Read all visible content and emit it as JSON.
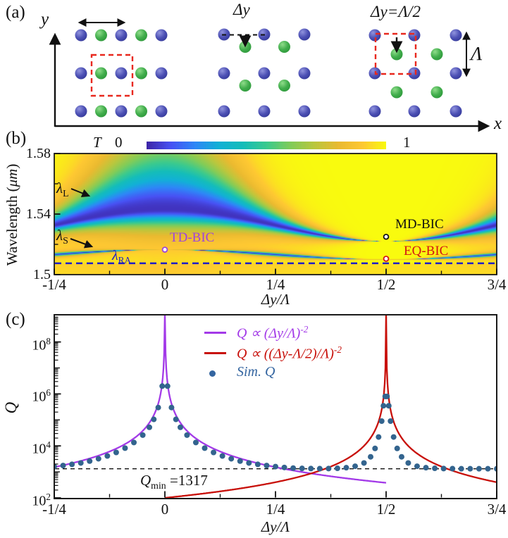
{
  "figure": {
    "panel_a": {
      "label": "(a)",
      "x_axis_label": "x",
      "y_axis_label": "y",
      "middle_shift_label": "Δy",
      "right_shift_label": "Δy=Λ/2",
      "period_label": "Λ",
      "colors": {
        "blue_dot": "#4347ae",
        "green_dot": "#3aaa46",
        "red_dashed": "#e8281e"
      },
      "lattices": {
        "left": {
          "cols": [
            115,
            143.5,
            172,
            200.5,
            229
          ],
          "rows": [
            50,
            104,
            158
          ],
          "pattern": [
            "blue",
            "green",
            "blue",
            "green",
            "blue"
          ],
          "unit_cell": [
            130,
            78,
            58,
            58
          ],
          "period_arrow": [
            113,
            32,
            176,
            32
          ]
        },
        "middle": {
          "blue_cols": [
            318,
            375,
            432
          ],
          "green_cols": [
            348,
            403.5
          ],
          "rows": [
            49,
            104,
            158
          ],
          "green_offset": 17.5,
          "dash_line": [
            315,
            49.5,
            378,
            49.5
          ],
          "shift_arrow": [
            348,
            50,
            348,
            64
          ]
        },
        "right": {
          "blue_cols": [
            532,
            588,
            647
          ],
          "green_cols": [
            563,
            620
          ],
          "rows": [
            50,
            104,
            158
          ],
          "green_offset": 27,
          "unit_cell": [
            533,
            48,
            57,
            57
          ],
          "shift_arrow": [
            563,
            53,
            563,
            72
          ],
          "lambda_arrow": [
            662,
            47,
            662,
            107
          ]
        }
      },
      "dot_radius": 8.5
    },
    "panel_b": {
      "label": "(b)",
      "y_axis_label": {
        "pre": "Wavelength (",
        "unit": "μm",
        "post": ")"
      },
      "x_axis_label": "Δy/Λ",
      "colorbar": {
        "label": "T",
        "min_label": "0",
        "max_label": "1"
      },
      "annotations": {
        "lambda_L": {
          "base": "λ",
          "sub": "L",
          "color": "#111111"
        },
        "lambda_S": {
          "base": "λ",
          "sub": "S",
          "color": "#111111"
        },
        "lambda_RA": {
          "base": "λ",
          "sub": "RA",
          "color": "#1c1cc8"
        },
        "td_bic": {
          "label": "TD-BIC",
          "color": "#9d45dd",
          "marker_x": 0,
          "marker_lambda": 1.5165
        },
        "md_bic": {
          "label": "MD-BIC",
          "color": "#111111",
          "marker_x": 0.5,
          "marker_lambda": 1.525
        },
        "eq_bic": {
          "label": "EQ-BIC",
          "color": "#d41414",
          "marker_x": 0.5,
          "marker_lambda": 1.5105
        }
      }
    },
    "panel_c": {
      "label": "(c)",
      "y_axis_label": "Q",
      "x_axis_label": "Δy/Λ",
      "legend": [
        {
          "text": "Q ∝ (Δy/Λ)",
          "sup": "-2",
          "color": "#a33ae8",
          "marker": "line"
        },
        {
          "text": "Q ∝ ((Δy-Λ/2)/Λ)",
          "sup": "-2",
          "color": "#c8100a",
          "marker": "line"
        },
        {
          "text": "Sim. Q",
          "sup": "",
          "color": "#3465a0",
          "marker": "dot"
        }
      ],
      "qmin_annotation": {
        "base": "Q",
        "sub": "min",
        "rest": " =1317"
      }
    }
  },
  "chart_data": [
    {
      "type": "heatmap",
      "title": "Transmission T vs relative shift and wavelength",
      "xlabel": "Δy/Λ",
      "ylabel": "Wavelength (μm)",
      "x_range": [
        -0.25,
        0.75
      ],
      "y_range": [
        1.5,
        1.58
      ],
      "x_tick_labels": [
        "-1/4",
        "0",
        "1/4",
        "1/2",
        "3/4"
      ],
      "x_tick_values": [
        -0.25,
        0,
        0.25,
        0.5,
        0.75
      ],
      "x_minor_ticks": [
        -0.125,
        0.125,
        0.375,
        0.625
      ],
      "y_tick_labels": [
        "1.58",
        "1.54",
        "1.5"
      ],
      "y_tick_values": [
        1.58,
        1.54,
        1.5
      ],
      "y_minor_ticks": [
        1.56,
        1.52
      ],
      "colorbar": {
        "label": "T",
        "min": 0,
        "max": 1
      },
      "model": {
        "background_T": 1.0,
        "branch_L": {
          "center_base": 1.522,
          "center_amp": 0.021,
          "width_up": 0.032,
          "width_down": 0.009,
          "width_pow": 3,
          "pinch_amp": 0.0025,
          "depth": 0.97
        },
        "branch_S": {
          "center_base": 1.51,
          "center_amp": 0.0065,
          "width_amp": 0.0008,
          "depth": 0.93
        },
        "rayleigh": {
          "lambda": 1.5075,
          "below_T_offset": -0.05,
          "line_color": "#1c1cc8"
        }
      },
      "bic_points": [
        {
          "name": "TD-BIC",
          "x": 0,
          "lambda": 1.5165,
          "color": "#9d45dd"
        },
        {
          "name": "MD-BIC",
          "x": 0.5,
          "lambda": 1.525,
          "color": "#111111"
        },
        {
          "name": "EQ-BIC",
          "x": 0.5,
          "lambda": 1.5105,
          "color": "#d41414"
        }
      ]
    },
    {
      "type": "line+scatter",
      "title": "Q factor vs relative shift",
      "xlabel": "Δy/Λ",
      "ylabel": "Q",
      "y_scale": "log",
      "x_range": [
        -0.25,
        0.75
      ],
      "x_tick_labels": [
        "-1/4",
        "0",
        "1/4",
        "1/2",
        "3/4"
      ],
      "x_tick_values": [
        -0.25,
        0,
        0.25,
        0.5,
        0.75
      ],
      "x_minor_ticks": [
        -0.125,
        0.125,
        0.375,
        0.625
      ],
      "y_tick_base": "10",
      "y_tick_exponents": [
        8,
        6,
        4,
        2
      ],
      "series": [
        {
          "name": "Q ∝ (Δy/Λ)^-2",
          "type": "line",
          "color": "#a33ae8",
          "A": 95,
          "x0": 0,
          "x_min": -0.25,
          "x_max": 0.4999
        },
        {
          "name": "Q ∝ ((Δy-Λ/2)/Λ)^-2",
          "type": "line",
          "color": "#c8100a",
          "A": 25,
          "x0": 0.5,
          "x_min": 0.0001,
          "x_max": 0.75
        },
        {
          "name": "Sim. Q",
          "type": "scatter",
          "color": "#33648e",
          "points": [
            [
              -0.25,
              1600
            ],
            [
              -0.23,
              1750
            ],
            [
              -0.21,
              1950
            ],
            [
              -0.19,
              2200
            ],
            [
              -0.17,
              2600
            ],
            [
              -0.15,
              3200
            ],
            [
              -0.13,
              4100
            ],
            [
              -0.11,
              5600
            ],
            [
              -0.09,
              8200
            ],
            [
              -0.07,
              13500
            ],
            [
              -0.05,
              26000
            ],
            [
              -0.035,
              52000
            ],
            [
              -0.025,
              105000
            ],
            [
              -0.015,
              300000
            ],
            [
              -0.006,
              2000000
            ],
            [
              0.006,
              2000000
            ],
            [
              0.015,
              300000
            ],
            [
              0.025,
              105000
            ],
            [
              0.035,
              52000
            ],
            [
              0.05,
              26000
            ],
            [
              0.07,
              13500
            ],
            [
              0.09,
              8200
            ],
            [
              0.11,
              5600
            ],
            [
              0.13,
              4100
            ],
            [
              0.15,
              3200
            ],
            [
              0.17,
              2600
            ],
            [
              0.19,
              2200
            ],
            [
              0.21,
              1950
            ],
            [
              0.23,
              1750
            ],
            [
              0.25,
              1600
            ],
            [
              0.27,
              1480
            ],
            [
              0.29,
              1400
            ],
            [
              0.31,
              1360
            ],
            [
              0.33,
              1340
            ],
            [
              0.35,
              1330
            ],
            [
              0.37,
              1340
            ],
            [
              0.39,
              1370
            ],
            [
              0.41,
              1450
            ],
            [
              0.43,
              1650
            ],
            [
              0.45,
              2200
            ],
            [
              0.465,
              3800
            ],
            [
              0.475,
              8000
            ],
            [
              0.483,
              22000
            ],
            [
              0.49,
              90000
            ],
            [
              0.494,
              350000
            ],
            [
              0.498,
              800000
            ],
            [
              0.502,
              800000
            ],
            [
              0.506,
              350000
            ],
            [
              0.51,
              90000
            ],
            [
              0.517,
              22000
            ],
            [
              0.525,
              8000
            ],
            [
              0.535,
              3800
            ],
            [
              0.55,
              2200
            ],
            [
              0.57,
              1650
            ],
            [
              0.59,
              1450
            ],
            [
              0.61,
              1370
            ],
            [
              0.63,
              1340
            ],
            [
              0.65,
              1330
            ],
            [
              0.67,
              1320
            ],
            [
              0.69,
              1320
            ],
            [
              0.71,
              1317
            ],
            [
              0.73,
              1317
            ],
            [
              0.75,
              1317
            ]
          ]
        }
      ],
      "qmin_line": {
        "value": 1317,
        "style": "dashed",
        "color": "#111111"
      }
    }
  ]
}
